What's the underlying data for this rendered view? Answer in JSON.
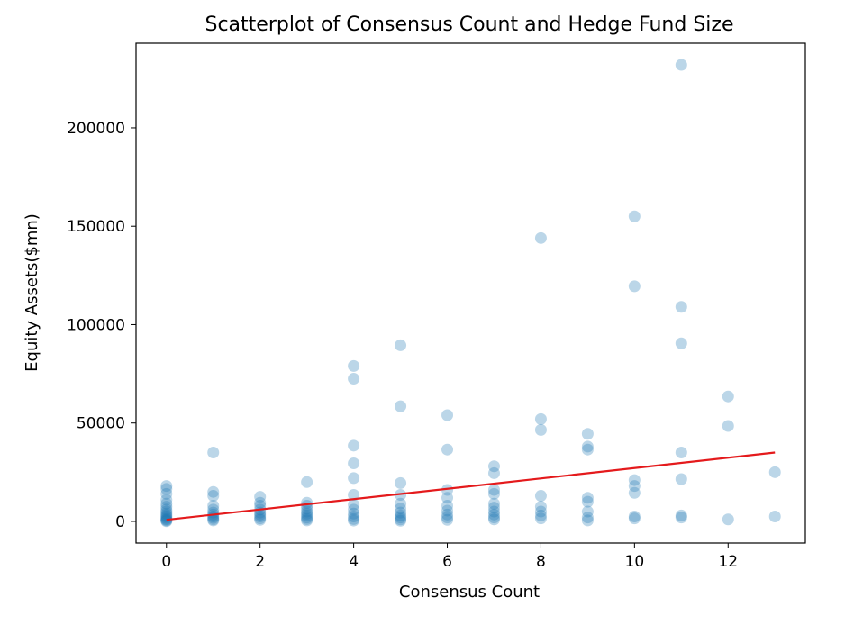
{
  "chart_data": {
    "type": "scatter",
    "title": "Scatterplot of Consensus Count and Hedge Fund Size",
    "xlabel": "Consensus Count",
    "ylabel": "Equity Assets($mn)",
    "xlim": [
      -0.65,
      13.65
    ],
    "ylim": [
      -11000,
      243000
    ],
    "x_ticks": [
      0,
      2,
      4,
      6,
      8,
      10,
      12
    ],
    "x_tick_labels": [
      "0",
      "2",
      "4",
      "6",
      "8",
      "10",
      "12"
    ],
    "y_ticks": [
      0,
      50000,
      100000,
      150000,
      200000
    ],
    "y_tick_labels": [
      "0",
      "50000",
      "100000",
      "150000",
      "200000"
    ],
    "point_color": "#1f77b4",
    "line_color": "#e41a1c",
    "trend_line": {
      "x": [
        0,
        13
      ],
      "y": [
        800,
        35000
      ]
    },
    "points": [
      {
        "x": 0,
        "y": 18000
      },
      {
        "x": 0,
        "y": 16500
      },
      {
        "x": 0,
        "y": 14000
      },
      {
        "x": 0,
        "y": 11000
      },
      {
        "x": 0,
        "y": 9000
      },
      {
        "x": 0,
        "y": 7500
      },
      {
        "x": 0,
        "y": 6000
      },
      {
        "x": 0,
        "y": 5000
      },
      {
        "x": 0,
        "y": 4000
      },
      {
        "x": 0,
        "y": 3200
      },
      {
        "x": 0,
        "y": 2500
      },
      {
        "x": 0,
        "y": 1800
      },
      {
        "x": 0,
        "y": 1200
      },
      {
        "x": 0,
        "y": 800
      },
      {
        "x": 0,
        "y": 400
      },
      {
        "x": 0,
        "y": 100
      },
      {
        "x": 1,
        "y": 35000
      },
      {
        "x": 1,
        "y": 15000
      },
      {
        "x": 1,
        "y": 13000
      },
      {
        "x": 1,
        "y": 8000
      },
      {
        "x": 1,
        "y": 6000
      },
      {
        "x": 1,
        "y": 4500
      },
      {
        "x": 1,
        "y": 3500
      },
      {
        "x": 1,
        "y": 2500
      },
      {
        "x": 1,
        "y": 1800
      },
      {
        "x": 1,
        "y": 1000
      },
      {
        "x": 1,
        "y": 500
      },
      {
        "x": 2,
        "y": 12500
      },
      {
        "x": 2,
        "y": 9500
      },
      {
        "x": 2,
        "y": 8000
      },
      {
        "x": 2,
        "y": 6000
      },
      {
        "x": 2,
        "y": 4500
      },
      {
        "x": 2,
        "y": 3500
      },
      {
        "x": 2,
        "y": 2500
      },
      {
        "x": 2,
        "y": 1500
      },
      {
        "x": 2,
        "y": 800
      },
      {
        "x": 3,
        "y": 20000
      },
      {
        "x": 3,
        "y": 9500
      },
      {
        "x": 3,
        "y": 8000
      },
      {
        "x": 3,
        "y": 6500
      },
      {
        "x": 3,
        "y": 5000
      },
      {
        "x": 3,
        "y": 4000
      },
      {
        "x": 3,
        "y": 3000
      },
      {
        "x": 3,
        "y": 2000
      },
      {
        "x": 3,
        "y": 1200
      },
      {
        "x": 3,
        "y": 500
      },
      {
        "x": 4,
        "y": 79000
      },
      {
        "x": 4,
        "y": 72500
      },
      {
        "x": 4,
        "y": 38500
      },
      {
        "x": 4,
        "y": 29500
      },
      {
        "x": 4,
        "y": 22000
      },
      {
        "x": 4,
        "y": 13500
      },
      {
        "x": 4,
        "y": 8500
      },
      {
        "x": 4,
        "y": 6000
      },
      {
        "x": 4,
        "y": 4000
      },
      {
        "x": 4,
        "y": 2500
      },
      {
        "x": 4,
        "y": 1200
      },
      {
        "x": 4,
        "y": 400
      },
      {
        "x": 5,
        "y": 89500
      },
      {
        "x": 5,
        "y": 58500
      },
      {
        "x": 5,
        "y": 19500
      },
      {
        "x": 5,
        "y": 13500
      },
      {
        "x": 5,
        "y": 9000
      },
      {
        "x": 5,
        "y": 6500
      },
      {
        "x": 5,
        "y": 4500
      },
      {
        "x": 5,
        "y": 3000
      },
      {
        "x": 5,
        "y": 2000
      },
      {
        "x": 5,
        "y": 1000
      },
      {
        "x": 5,
        "y": 300
      },
      {
        "x": 6,
        "y": 54000
      },
      {
        "x": 6,
        "y": 36500
      },
      {
        "x": 6,
        "y": 16000
      },
      {
        "x": 6,
        "y": 12000
      },
      {
        "x": 6,
        "y": 8000
      },
      {
        "x": 6,
        "y": 5500
      },
      {
        "x": 6,
        "y": 3500
      },
      {
        "x": 6,
        "y": 2000
      },
      {
        "x": 6,
        "y": 800
      },
      {
        "x": 7,
        "y": 28000
      },
      {
        "x": 7,
        "y": 24500
      },
      {
        "x": 7,
        "y": 16000
      },
      {
        "x": 7,
        "y": 14000
      },
      {
        "x": 7,
        "y": 9000
      },
      {
        "x": 7,
        "y": 7000
      },
      {
        "x": 7,
        "y": 5000
      },
      {
        "x": 7,
        "y": 3500
      },
      {
        "x": 7,
        "y": 2000
      },
      {
        "x": 7,
        "y": 1000
      },
      {
        "x": 8,
        "y": 144000
      },
      {
        "x": 8,
        "y": 52000
      },
      {
        "x": 8,
        "y": 46500
      },
      {
        "x": 8,
        "y": 13000
      },
      {
        "x": 8,
        "y": 7500
      },
      {
        "x": 8,
        "y": 5000
      },
      {
        "x": 8,
        "y": 3000
      },
      {
        "x": 8,
        "y": 1500
      },
      {
        "x": 9,
        "y": 44500
      },
      {
        "x": 9,
        "y": 38000
      },
      {
        "x": 9,
        "y": 36500
      },
      {
        "x": 9,
        "y": 12000
      },
      {
        "x": 9,
        "y": 10000
      },
      {
        "x": 9,
        "y": 5000
      },
      {
        "x": 9,
        "y": 2000
      },
      {
        "x": 9,
        "y": 500
      },
      {
        "x": 10,
        "y": 155000
      },
      {
        "x": 10,
        "y": 119500
      },
      {
        "x": 10,
        "y": 21000
      },
      {
        "x": 10,
        "y": 18000
      },
      {
        "x": 10,
        "y": 14500
      },
      {
        "x": 10,
        "y": 2500
      },
      {
        "x": 10,
        "y": 1500
      },
      {
        "x": 11,
        "y": 232000
      },
      {
        "x": 11,
        "y": 109000
      },
      {
        "x": 11,
        "y": 90500
      },
      {
        "x": 11,
        "y": 35000
      },
      {
        "x": 11,
        "y": 21500
      },
      {
        "x": 11,
        "y": 3000
      },
      {
        "x": 11,
        "y": 2000
      },
      {
        "x": 12,
        "y": 63500
      },
      {
        "x": 12,
        "y": 48500
      },
      {
        "x": 12,
        "y": 1000
      },
      {
        "x": 13,
        "y": 25000
      },
      {
        "x": 13,
        "y": 2500
      }
    ]
  }
}
